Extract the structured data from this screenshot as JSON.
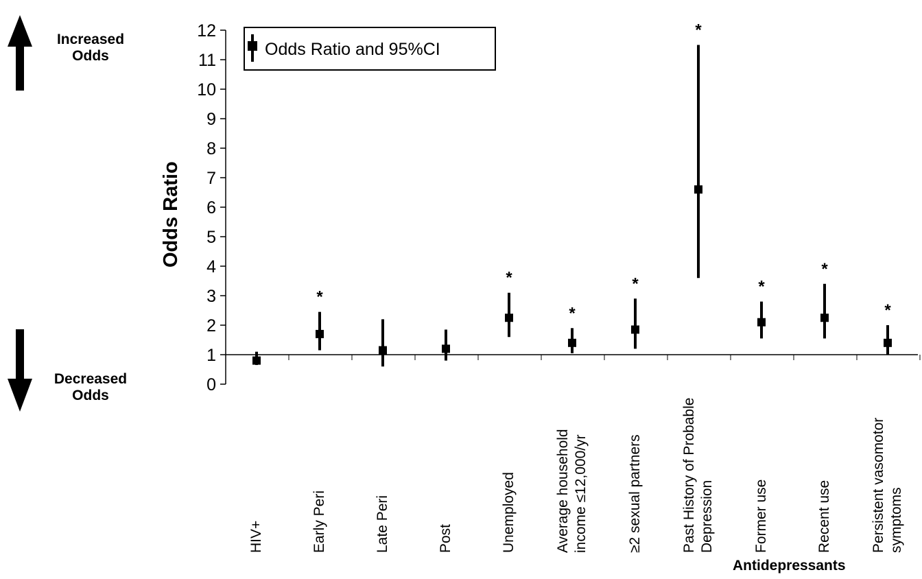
{
  "annotations": {
    "increased": [
      "Increased",
      "Odds"
    ],
    "decreased": [
      "Decreased",
      "Odds"
    ]
  },
  "legend": {
    "label": "Odds Ratio and 95%CI"
  },
  "chart_data": {
    "type": "errorbar",
    "title": "",
    "xlabel": "",
    "ylabel": "Odds Ratio",
    "ylim": [
      0,
      12
    ],
    "yticks": [
      0,
      1,
      2,
      3,
      4,
      5,
      6,
      7,
      8,
      9,
      10,
      11,
      12
    ],
    "group_label": "Antidepressants",
    "grid": false,
    "legend_position": "top-left",
    "categories": [
      [
        "HIV+"
      ],
      [
        "Early Peri"
      ],
      [
        "Late Peri"
      ],
      [
        "Post"
      ],
      [
        "Unemployed"
      ],
      [
        "Average  household",
        "income ≤12,000/yr"
      ],
      [
        "≥2 sexual  partners"
      ],
      [
        "Past History of Probable",
        "Depression"
      ],
      [
        "Former use"
      ],
      [
        "Recent  use"
      ],
      [
        "Persistent  vasomotor",
        "symptoms"
      ]
    ],
    "series": [
      {
        "odds_ratio": [
          0.8,
          1.7,
          1.15,
          1.2,
          2.25,
          1.4,
          1.85,
          6.6,
          2.1,
          2.25,
          1.4
        ],
        "ci_lower": [
          0.65,
          1.15,
          0.6,
          0.8,
          1.6,
          1.05,
          1.2,
          3.6,
          1.55,
          1.55,
          1.0
        ],
        "ci_upper": [
          1.1,
          2.45,
          2.2,
          1.85,
          3.1,
          1.9,
          2.9,
          11.5,
          2.8,
          3.4,
          2.0
        ],
        "significant": [
          false,
          true,
          false,
          false,
          true,
          true,
          true,
          true,
          true,
          true,
          true
        ]
      }
    ],
    "significance_marker": "*",
    "colors": {
      "marks": "#000000",
      "background": "#ffffff"
    }
  }
}
